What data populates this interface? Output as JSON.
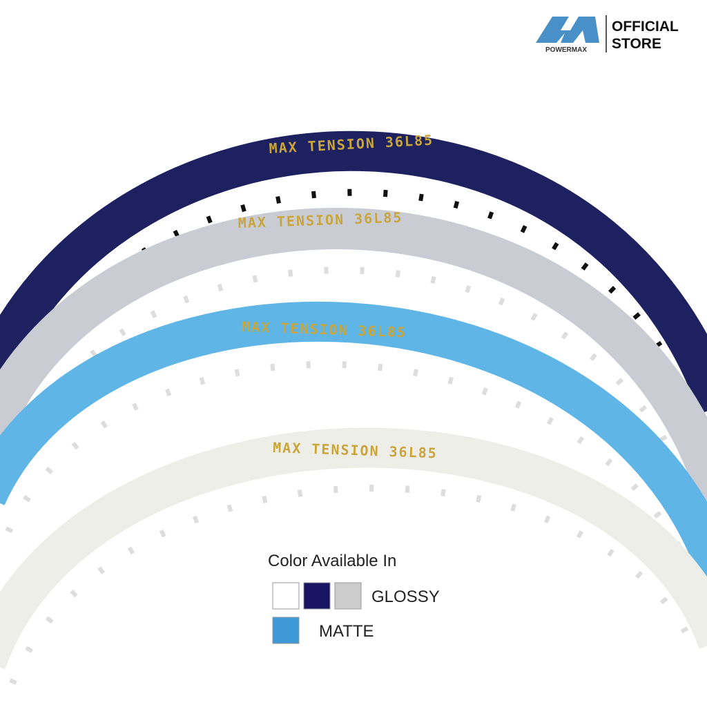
{
  "header": {
    "brand": "POWERMAX",
    "store": [
      "OFFICIAL",
      "STORE"
    ]
  },
  "rackets": [
    {
      "label": "MAX TENSION 36L85",
      "color": "#1e2160"
    },
    {
      "label": "MAX TENSION 36L85",
      "color": "#c9ccd2"
    },
    {
      "label": "MAX TENSION 36L85",
      "color": "#5fb6e6"
    },
    {
      "label": "MAX TENSION 36L85",
      "color": "#eeeee8"
    }
  ],
  "colors": {
    "title": "Color Available In",
    "glossy": {
      "label": "GLOSSY",
      "swatches": [
        "#ffffff",
        "#1a1464",
        "#cccccc"
      ]
    },
    "matte": {
      "label": "MATTE",
      "swatches": [
        "#3d9ad6"
      ]
    }
  }
}
